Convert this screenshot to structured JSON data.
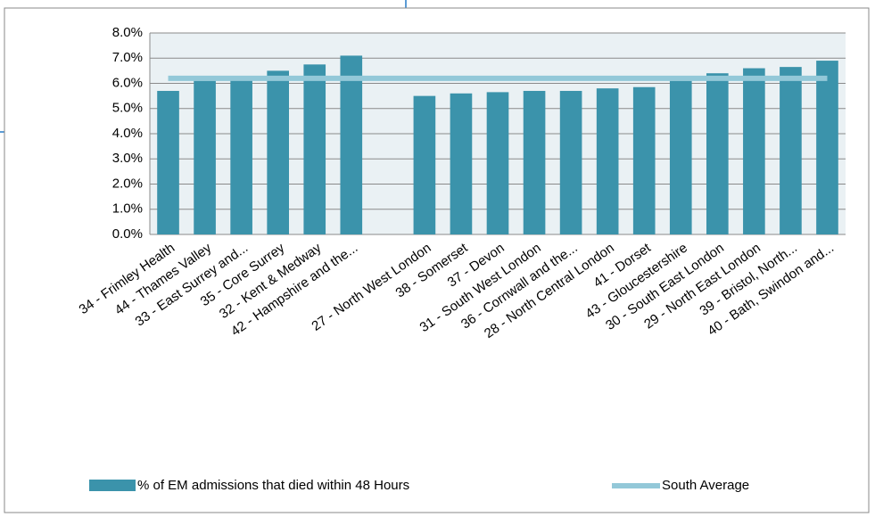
{
  "chart_data": {
    "type": "bar",
    "categories": [
      "34 - Frimley Health",
      "44 - Thames Valley",
      "33 - East Surrey and...",
      "35 - Core Surrey",
      "32 - Kent & Medway",
      "42 - Hampshire and the...",
      null,
      "27 - North West London",
      "38 - Somerset",
      "37 - Devon",
      "31 - South West London",
      "36 - Cornwall and the...",
      "28 - North Central London",
      "41 - Dorset",
      "43 - Gloucestershire",
      "30 - South East London",
      "29 - North East London",
      "39 - Bristol, North...",
      "40 - Bath, Swindon and..."
    ],
    "series": [
      {
        "name": "% of EM admissions that died within 48 Hours",
        "color": "#3b93ab",
        "values": [
          5.7,
          6.1,
          6.2,
          6.5,
          6.75,
          7.1,
          null,
          5.5,
          5.6,
          5.65,
          5.7,
          5.7,
          5.8,
          5.85,
          6.1,
          6.4,
          6.6,
          6.65,
          6.9
        ]
      }
    ],
    "average": {
      "name": "South Average",
      "color": "#93c8d8",
      "value": 6.2
    },
    "ylim": [
      0,
      8
    ],
    "yticks": [
      {
        "value": 0,
        "label": "0.0%"
      },
      {
        "value": 1,
        "label": "1.0%"
      },
      {
        "value": 2,
        "label": "2.0%"
      },
      {
        "value": 3,
        "label": "3.0%"
      },
      {
        "value": 4,
        "label": "4.0%"
      },
      {
        "value": 5,
        "label": "5.0%"
      },
      {
        "value": 6,
        "label": "6.0%"
      },
      {
        "value": 7,
        "label": "7.0%"
      },
      {
        "value": 8,
        "label": "8.0%"
      }
    ],
    "grid": true
  }
}
